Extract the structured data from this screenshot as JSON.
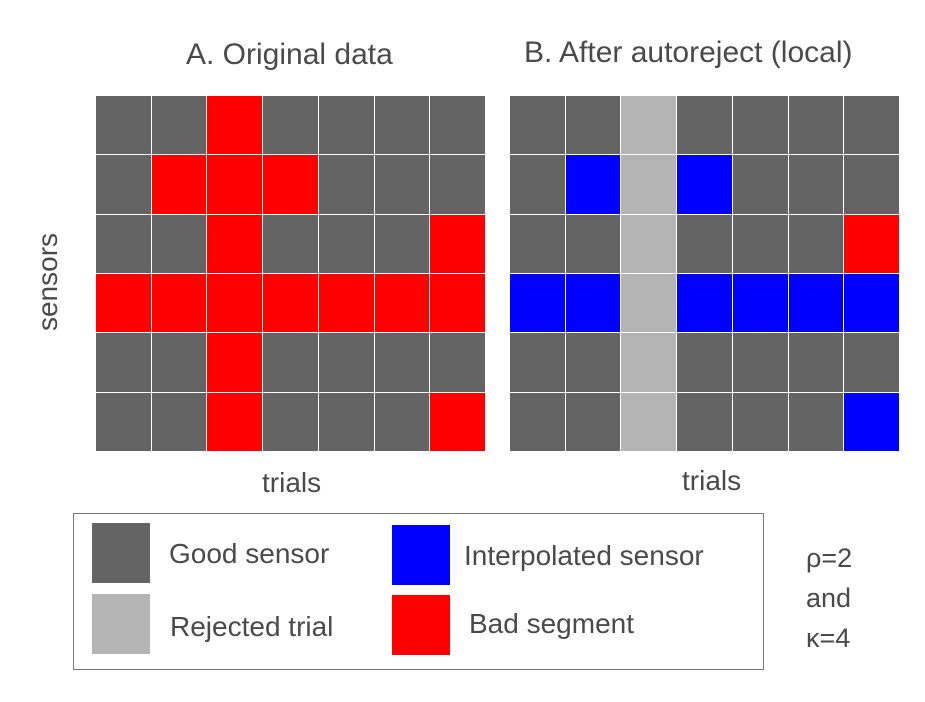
{
  "panel_a": {
    "title": "A. Original data",
    "xlabel": "trials",
    "grid": [
      [
        "good",
        "good",
        "bad",
        "good",
        "good",
        "good",
        "good"
      ],
      [
        "good",
        "bad",
        "bad",
        "bad",
        "good",
        "good",
        "good"
      ],
      [
        "good",
        "good",
        "bad",
        "good",
        "good",
        "good",
        "bad"
      ],
      [
        "bad",
        "bad",
        "bad",
        "bad",
        "bad",
        "bad",
        "bad"
      ],
      [
        "good",
        "good",
        "bad",
        "good",
        "good",
        "good",
        "good"
      ],
      [
        "good",
        "good",
        "bad",
        "good",
        "good",
        "good",
        "bad"
      ]
    ]
  },
  "panel_b": {
    "title": "B. After autoreject (local)",
    "xlabel": "trials",
    "grid": [
      [
        "good",
        "good",
        "rejected",
        "good",
        "good",
        "good",
        "good"
      ],
      [
        "good",
        "interp",
        "rejected",
        "interp",
        "good",
        "good",
        "good"
      ],
      [
        "good",
        "good",
        "rejected",
        "good",
        "good",
        "good",
        "bad"
      ],
      [
        "interp",
        "interp",
        "rejected",
        "interp",
        "interp",
        "interp",
        "interp"
      ],
      [
        "good",
        "good",
        "rejected",
        "good",
        "good",
        "good",
        "good"
      ],
      [
        "good",
        "good",
        "rejected",
        "good",
        "good",
        "good",
        "interp"
      ]
    ]
  },
  "ylabel": "sensors",
  "colors": {
    "good": "#646464",
    "rejected": "#b4b4b4",
    "interp": "#0000ff",
    "bad": "#ff0000"
  },
  "legend": {
    "good": "Good sensor",
    "rejected": "Rejected trial",
    "interp": "Interpolated sensor",
    "bad": "Bad segment"
  },
  "note": {
    "line1": "ρ=2",
    "line2": "and",
    "line3": "κ=4"
  }
}
